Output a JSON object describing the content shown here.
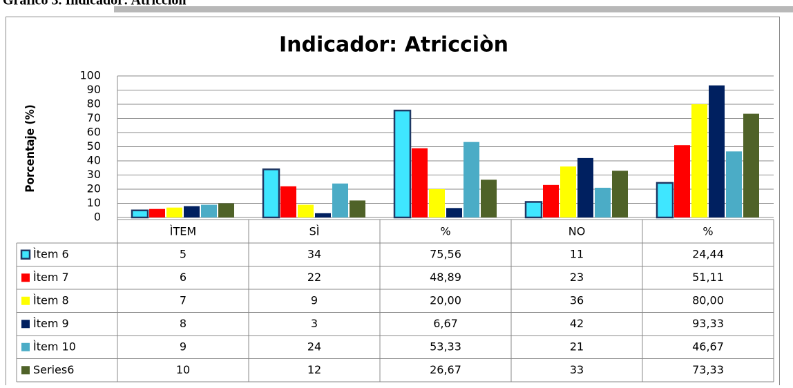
{
  "caption": "Gráfico 3. Indicador: Atricción",
  "chart_data": {
    "type": "bar",
    "title": "Indicador: Atricciòn",
    "ylabel": "Porcentaje (%)",
    "categories": [
      "ÌTEM",
      "SÌ",
      "%",
      "NO",
      "%"
    ],
    "series": [
      {
        "name": "Ìtem 6",
        "color": "#3fe6ff",
        "edgecolor": "#1f3864",
        "values": [
          5,
          34,
          75.56,
          11,
          24.44
        ],
        "value_labels": [
          "5",
          "34",
          "75,56",
          "11",
          "24,44"
        ]
      },
      {
        "name": "Ìtem 7",
        "color": "#ff0000",
        "values": [
          6,
          22,
          48.89,
          23,
          51.11
        ],
        "value_labels": [
          "6",
          "22",
          "48,89",
          "23",
          "51,11"
        ]
      },
      {
        "name": "Ìtem 8",
        "color": "#ffff00",
        "values": [
          7,
          9,
          20,
          36,
          80
        ],
        "value_labels": [
          "7",
          "9",
          "20,00",
          "36",
          "80,00"
        ]
      },
      {
        "name": "Ìtem 9",
        "color": "#002060",
        "values": [
          8,
          3,
          6.67,
          42,
          93.33
        ],
        "value_labels": [
          "8",
          "3",
          "6,67",
          "42",
          "93,33"
        ]
      },
      {
        "name": "Ìtem 10",
        "color": "#4bacc6",
        "values": [
          9,
          24,
          53.33,
          21,
          46.67
        ],
        "value_labels": [
          "9",
          "24",
          "53,33",
          "21",
          "46,67"
        ]
      },
      {
        "name": "Series6",
        "color": "#4f6228",
        "values": [
          10,
          12,
          26.67,
          33,
          73.33
        ],
        "value_labels": [
          "10",
          "12",
          "26,67",
          "33",
          "73,33"
        ]
      }
    ],
    "ylim": [
      0,
      100
    ],
    "yticks": [
      0,
      10,
      20,
      30,
      40,
      50,
      60,
      70,
      80,
      90,
      100
    ],
    "grid": true
  }
}
